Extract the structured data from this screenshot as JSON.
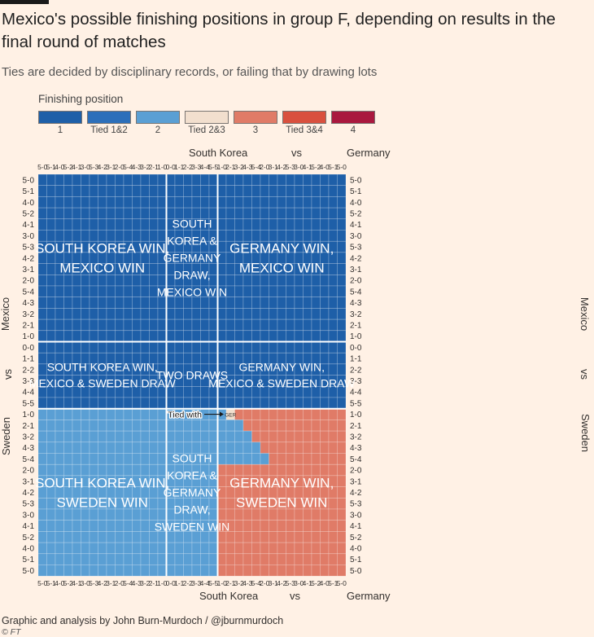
{
  "title": "Mexico's possible finishing positions in group F, depending on results in the final round of matches",
  "subtitle": "Ties are decided by disciplinary records, or failing that by drawing lots",
  "legend": {
    "title": "Finishing position",
    "items": [
      {
        "label": "1",
        "color": "#1e5fa8"
      },
      {
        "label": "Tied 1&2",
        "color": "#2c6fba"
      },
      {
        "label": "2",
        "color": "#5a9fd4"
      },
      {
        "label": "Tied 2&3",
        "color": "#f2dfce"
      },
      {
        "label": "3",
        "color": "#e07b67"
      },
      {
        "label": "Tied 3&4",
        "color": "#d9503e"
      },
      {
        "label": "4",
        "color": "#a9183e"
      }
    ]
  },
  "top_axis": {
    "left": "South Korea",
    "mid": "vs",
    "right": "Germany"
  },
  "bottom_axis": {
    "left": "South Korea",
    "mid": "vs",
    "right": "Germany"
  },
  "left_axis": {
    "top": "Mexico",
    "mid": "vs",
    "bottom": "Sweden"
  },
  "right_axis": {
    "top": "Mexico",
    "mid": "vs",
    "bottom": "Sweden"
  },
  "credit": "Graphic and analysis by John Burn-Murdoch / @jburnmurdoch",
  "footer": "© FT",
  "chart_data": {
    "type": "heatmap",
    "title": "Mexico's possible finishing positions in group F",
    "x_label": "South Korea vs Germany score",
    "y_label": "Mexico vs Sweden score",
    "x_categories": [
      "5-0",
      "5-1",
      "4-0",
      "5-2",
      "4-1",
      "3-0",
      "5-3",
      "4-2",
      "3-1",
      "2-0",
      "5-4",
      "4-3",
      "3-2",
      "2-1",
      "1-0",
      "0-0",
      "1-1",
      "2-2",
      "3-3",
      "4-4",
      "5-5",
      "1-0",
      "2-1",
      "3-2",
      "4-3",
      "5-4",
      "2-0",
      "3-1",
      "4-2",
      "5-3",
      "3-0",
      "4-1",
      "5-2",
      "4-0",
      "5-1",
      "5-0"
    ],
    "y_categories": [
      "5-0",
      "5-1",
      "4-0",
      "5-2",
      "4-1",
      "3-0",
      "5-3",
      "4-2",
      "3-1",
      "2-0",
      "5-4",
      "4-3",
      "3-2",
      "2-1",
      "1-0",
      "0-0",
      "1-1",
      "2-2",
      "3-3",
      "4-4",
      "5-5",
      "1-0",
      "2-1",
      "3-2",
      "4-3",
      "5-4",
      "2-0",
      "3-1",
      "4-2",
      "5-3",
      "3-0",
      "4-1",
      "5-2",
      "4-0",
      "5-1",
      "5-0"
    ],
    "position_codes": {
      "1": "1",
      "2": "2",
      "3": "3",
      "T23": "Tied 2&3"
    },
    "regions": [
      {
        "label": "SOUTH KOREA WIN, MEXICO WIN",
        "x_range": [
          0,
          14
        ],
        "y_range": [
          0,
          14
        ],
        "position": "1"
      },
      {
        "label": "SOUTH KOREA & GERMANY DRAW, MEXICO WIN",
        "x_range": [
          15,
          20
        ],
        "y_range": [
          0,
          14
        ],
        "position": "1"
      },
      {
        "label": "GERMANY WIN, MEXICO WIN",
        "x_range": [
          21,
          35
        ],
        "y_range": [
          0,
          14
        ],
        "position": "1"
      },
      {
        "label": "SOUTH KOREA WIN, MEXICO & SWEDEN DRAW",
        "x_range": [
          0,
          14
        ],
        "y_range": [
          15,
          20
        ],
        "position": "1"
      },
      {
        "label": "TWO DRAWS",
        "x_range": [
          15,
          20
        ],
        "y_range": [
          15,
          20
        ],
        "position": "1"
      },
      {
        "label": "GERMANY WIN, MEXICO & SWEDEN DRAW",
        "x_range": [
          21,
          35
        ],
        "y_range": [
          15,
          20
        ],
        "position": "1"
      },
      {
        "label": "SOUTH KOREA WIN, SWEDEN WIN",
        "x_range": [
          0,
          14
        ],
        "y_range": [
          21,
          35
        ],
        "position": "2"
      },
      {
        "label": "SOUTH KOREA & GERMANY DRAW, SWEDEN WIN",
        "x_range": [
          15,
          20
        ],
        "y_range": [
          21,
          35
        ],
        "position": "2"
      },
      {
        "label": "GERMANY WIN, SWEDEN WIN",
        "x_range": [
          21,
          35
        ],
        "y_range": [
          21,
          35
        ],
        "position": "3"
      }
    ],
    "exceptions": [
      {
        "row": 21,
        "cols": [
          21
        ],
        "position": "2"
      },
      {
        "row": 21,
        "cols": [
          22
        ],
        "position": "T23"
      },
      {
        "row": 22,
        "cols": [
          21,
          22,
          23
        ],
        "position": "2"
      },
      {
        "row": 23,
        "cols": [
          21,
          22,
          23,
          24
        ],
        "position": "2"
      },
      {
        "row": 24,
        "cols": [
          21,
          22,
          23,
          24,
          25
        ],
        "position": "2"
      },
      {
        "row": 25,
        "cols": [
          21,
          22,
          23,
          24,
          25,
          26
        ],
        "position": "2"
      }
    ],
    "region_label_lines": {
      "SOUTH KOREA WIN, MEXICO WIN": [
        "SOUTH KOREA WIN,",
        "MEXICO WIN"
      ],
      "SOUTH KOREA & GERMANY DRAW, MEXICO WIN": [
        "SOUTH",
        "KOREA &",
        "GERMANY",
        "DRAW,",
        "MEXICO WIN"
      ],
      "GERMANY WIN, MEXICO WIN": [
        "GERMANY WIN,",
        "MEXICO WIN"
      ],
      "SOUTH KOREA WIN, MEXICO & SWEDEN DRAW": [
        "SOUTH KOREA WIN,",
        "MEXICO & SWEDEN DRAW"
      ],
      "TWO DRAWS": [
        "TWO DRAWS"
      ],
      "GERMANY WIN, MEXICO & SWEDEN DRAW": [
        "GERMANY WIN,",
        "MEXICO & SWEDEN DRAW"
      ],
      "SOUTH KOREA WIN, SWEDEN WIN": [
        "SOUTH KOREA WIN,",
        "SWEDEN WIN"
      ],
      "SOUTH KOREA & GERMANY DRAW, SWEDEN WIN": [
        "SOUTH",
        "KOREA &",
        "GERMANY",
        "DRAW,",
        "SWEDEN WIN"
      ],
      "GERMANY WIN, SWEDEN WIN": [
        "GERMANY WIN,",
        "SWEDEN WIN"
      ]
    },
    "annotation": {
      "text": "Tied with",
      "target_label": "GER",
      "row": 21,
      "col": 22
    }
  }
}
